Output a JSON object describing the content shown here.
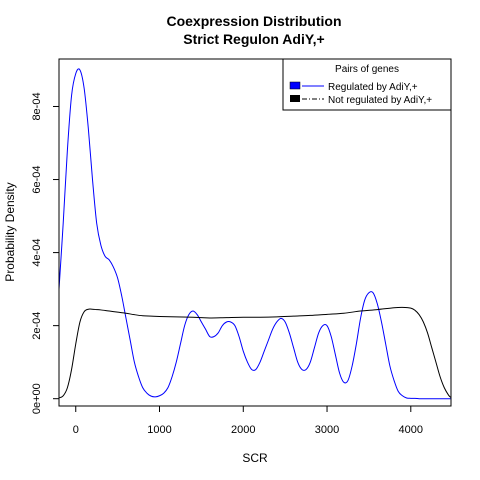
{
  "chart_data": {
    "type": "line",
    "title": "Coexpression Distribution",
    "subtitle": "Strict Regulon AdiY,+",
    "xlabel": "SCR",
    "ylabel": "Probability Density",
    "xlim": [
      -200,
      4480
    ],
    "ylim": [
      -2e-05,
      0.00093
    ],
    "x_ticks": [
      0,
      1000,
      2000,
      3000,
      4000
    ],
    "x_tick_labels": [
      "0",
      "1000",
      "2000",
      "3000",
      "4000"
    ],
    "y_ticks": [
      0,
      0.0002,
      0.0004,
      0.0006,
      0.0008
    ],
    "y_tick_labels": [
      "0e+00",
      "2e-04",
      "4e-04",
      "6e-04",
      "8e-04"
    ],
    "grid": false,
    "legend": {
      "title": "Pairs of genes",
      "placement": "top-right",
      "entries": [
        "Regulated by  AdiY,+",
        "Not regulated by  AdiY,+"
      ]
    },
    "series": [
      {
        "name": "Regulated by  AdiY,+",
        "color": "#0000ff",
        "x": [
          -200,
          -150,
          -100,
          -50,
          0,
          50,
          100,
          150,
          200,
          250,
          300,
          350,
          400,
          450,
          500,
          550,
          600,
          650,
          700,
          750,
          800,
          850,
          900,
          950,
          1000,
          1050,
          1100,
          1150,
          1200,
          1250,
          1300,
          1350,
          1400,
          1450,
          1500,
          1550,
          1600,
          1650,
          1700,
          1750,
          1800,
          1850,
          1900,
          1950,
          2000,
          2050,
          2100,
          2150,
          2200,
          2250,
          2300,
          2350,
          2400,
          2450,
          2500,
          2550,
          2600,
          2650,
          2700,
          2750,
          2800,
          2850,
          2900,
          2950,
          3000,
          3050,
          3100,
          3150,
          3200,
          3250,
          3300,
          3350,
          3400,
          3450,
          3500,
          3550,
          3600,
          3650,
          3700,
          3750,
          3800,
          3850,
          3900,
          3950,
          4000,
          4050,
          4100,
          4150,
          4200,
          4250,
          4300,
          4350,
          4400,
          4450,
          4480
        ],
        "y": [
          0.0003,
          0.00048,
          0.00068,
          0.00083,
          0.00089,
          0.0009,
          0.00085,
          0.00074,
          0.0006,
          0.00048,
          0.00042,
          0.00039,
          0.00038,
          0.00036,
          0.00033,
          0.00028,
          0.00022,
          0.00016,
          0.0001,
          6e-05,
          3e-05,
          1.5e-05,
          7e-06,
          5e-06,
          8e-06,
          1.5e-05,
          3e-05,
          6e-05,
          0.0001,
          0.00015,
          0.0002,
          0.00023,
          0.00024,
          0.00023,
          0.00021,
          0.00019,
          0.00017,
          0.00017,
          0.00018,
          0.0002,
          0.00021,
          0.00021,
          0.0002,
          0.00017,
          0.00013,
          0.0001,
          8e-05,
          8e-05,
          0.0001,
          0.00013,
          0.00016,
          0.00019,
          0.00021,
          0.00022,
          0.00021,
          0.00018,
          0.00014,
          0.0001,
          8e-05,
          8e-05,
          0.0001,
          0.00014,
          0.00018,
          0.0002,
          0.0002,
          0.00017,
          0.00012,
          7e-05,
          4.5e-05,
          5e-05,
          9e-05,
          0.00015,
          0.00022,
          0.00027,
          0.00029,
          0.00029,
          0.00026,
          0.00021,
          0.00015,
          9e-05,
          5e-05,
          2e-05,
          8e-06,
          2e-06,
          1e-06,
          1e-06,
          0.0,
          0.0,
          0.0,
          0.0,
          0.0,
          0.0,
          0.0,
          0.0,
          0.0
        ]
      },
      {
        "name": "Not regulated by  AdiY,+",
        "color": "#000000",
        "x": [
          -200,
          -150,
          -100,
          -50,
          0,
          50,
          100,
          150,
          200,
          250,
          300,
          400,
          500,
          600,
          700,
          800,
          900,
          1000,
          1200,
          1400,
          1500,
          1600,
          1800,
          2000,
          2200,
          2400,
          2600,
          2800,
          3000,
          3200,
          3400,
          3600,
          3800,
          3900,
          4000,
          4050,
          4100,
          4150,
          4200,
          4250,
          4300,
          4350,
          4400,
          4450,
          4480
        ],
        "y": [
          2e-06,
          8e-06,
          3e-05,
          8e-05,
          0.00015,
          0.00021,
          0.000238,
          0.000245,
          0.000245,
          0.000244,
          0.000243,
          0.00024,
          0.000237,
          0.000234,
          0.00023,
          0.000227,
          0.000226,
          0.000225,
          0.000224,
          0.000223,
          0.000222,
          0.000221,
          0.000222,
          0.000223,
          0.000223,
          0.000224,
          0.000226,
          0.000228,
          0.000231,
          0.000234,
          0.00024,
          0.000244,
          0.000249,
          0.00025,
          0.000248,
          0.000242,
          0.00023,
          0.00021,
          0.00018,
          0.00014,
          0.0001,
          6e-05,
          3e-05,
          1e-05,
          3e-06
        ]
      }
    ]
  }
}
